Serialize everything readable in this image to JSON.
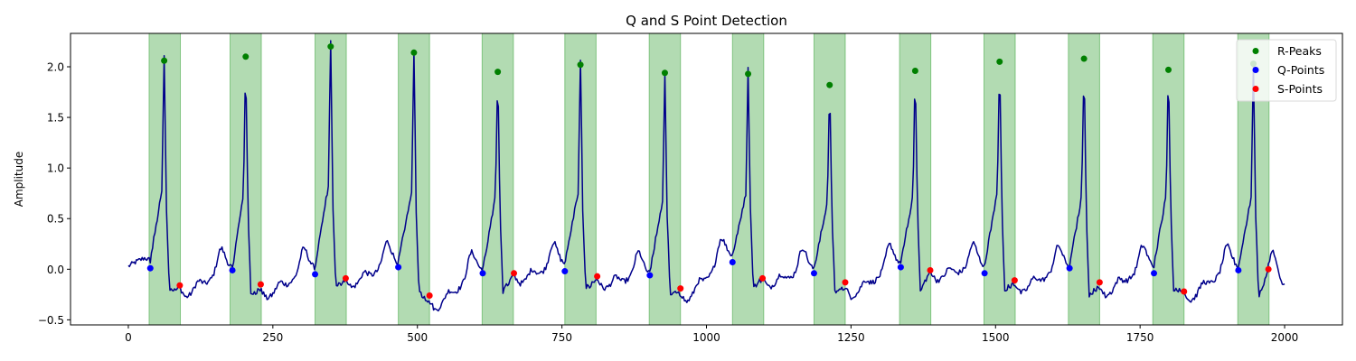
{
  "chart_data": {
    "type": "line",
    "title": "Q and S Point Detection",
    "xlabel": "",
    "ylabel": "Amplitude",
    "xlim": [
      -100,
      2100
    ],
    "ylim": [
      -0.55,
      2.33
    ],
    "xticks": [
      0,
      250,
      500,
      750,
      1000,
      1250,
      1500,
      1750,
      2000
    ],
    "yticks": [
      -0.5,
      0.0,
      0.5,
      1.0,
      1.5,
      2.0
    ],
    "ytick_labels": [
      "−0.5",
      "0.0",
      "0.5",
      "1.0",
      "1.5",
      "2.0"
    ],
    "grid": false,
    "legend_position": "top-right",
    "colors": {
      "signal": "#00008b",
      "r_peaks": "#008000",
      "q_points": "#0000ff",
      "s_points": "#ff0000",
      "qrs_region": "#5cb35c"
    },
    "qrs_regions": [
      [
        36,
        90
      ],
      [
        176,
        230
      ],
      [
        323,
        377
      ],
      [
        467,
        521
      ],
      [
        612,
        666
      ],
      [
        755,
        809
      ],
      [
        901,
        955
      ],
      [
        1045,
        1099
      ],
      [
        1186,
        1240
      ],
      [
        1334,
        1388
      ],
      [
        1480,
        1534
      ],
      [
        1626,
        1680
      ],
      [
        1772,
        1826
      ],
      [
        1919,
        1973
      ]
    ],
    "series": [
      {
        "name": "R-Peaks",
        "marker": "circle",
        "points": [
          [
            62,
            2.06
          ],
          [
            203,
            2.1
          ],
          [
            350,
            2.2
          ],
          [
            494,
            2.14
          ],
          [
            639,
            1.95
          ],
          [
            782,
            2.02
          ],
          [
            928,
            1.94
          ],
          [
            1072,
            1.93
          ],
          [
            1213,
            1.82
          ],
          [
            1361,
            1.96
          ],
          [
            1507,
            2.05
          ],
          [
            1653,
            2.08
          ],
          [
            1799,
            1.97
          ],
          [
            1946,
            2.03
          ]
        ]
      },
      {
        "name": "Q-Points",
        "marker": "circle",
        "points": [
          [
            38,
            0.01
          ],
          [
            180,
            -0.01
          ],
          [
            323,
            -0.05
          ],
          [
            467,
            0.02
          ],
          [
            613,
            -0.04
          ],
          [
            755,
            -0.02
          ],
          [
            902,
            -0.06
          ],
          [
            1045,
            0.07
          ],
          [
            1186,
            -0.04
          ],
          [
            1336,
            0.02
          ],
          [
            1481,
            -0.04
          ],
          [
            1628,
            0.01
          ],
          [
            1774,
            -0.04
          ],
          [
            1920,
            -0.01
          ]
        ]
      },
      {
        "name": "S-Points",
        "marker": "circle",
        "points": [
          [
            89,
            -0.16
          ],
          [
            229,
            -0.15
          ],
          [
            376,
            -0.09
          ],
          [
            521,
            -0.26
          ],
          [
            667,
            -0.04
          ],
          [
            811,
            -0.07
          ],
          [
            955,
            -0.19
          ],
          [
            1097,
            -0.09
          ],
          [
            1240,
            -0.13
          ],
          [
            1387,
            -0.01
          ],
          [
            1533,
            -0.11
          ],
          [
            1680,
            -0.13
          ],
          [
            1826,
            -0.22
          ],
          [
            1972,
            0.0
          ]
        ]
      }
    ]
  }
}
